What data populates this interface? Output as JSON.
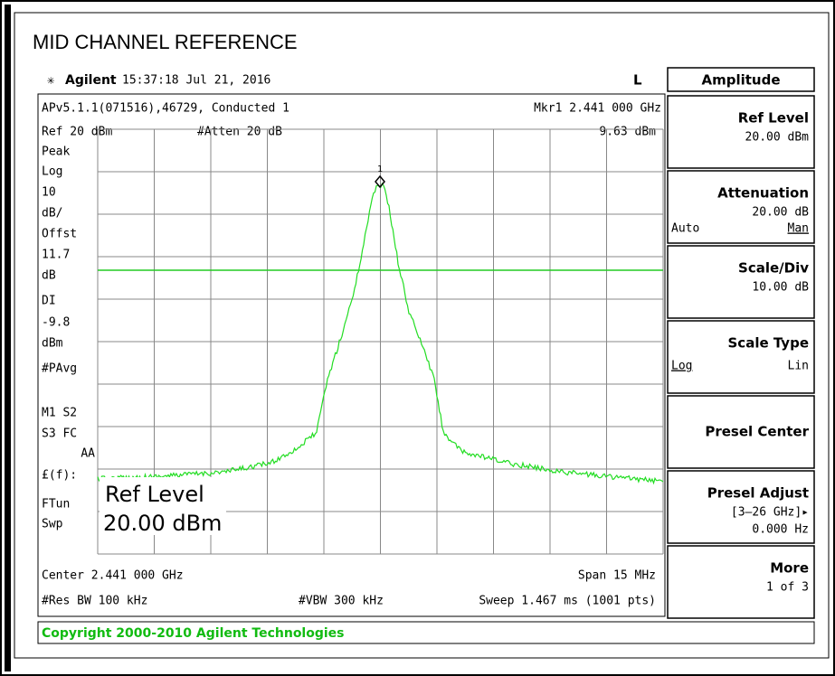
{
  "header": {
    "title": "MID CHANNEL REFERENCE",
    "brand": "Agilent",
    "time": "15:37:18  Jul 21, 2016",
    "mode": "L"
  },
  "screen": {
    "top_left": "APv5.1.1(071516),46729, Conducted 1",
    "marker": "Mkr1  2.441 000 GHz",
    "ref": "Ref 20 dBm",
    "atten": "#Atten 20 dB",
    "marker_value": "9.63 dBm",
    "marker_number": "1",
    "side_labels": [
      "Peak",
      "Log",
      "10",
      "dB/",
      "Offst",
      "11.7",
      "dB",
      "DI",
      "-9.8",
      "dBm",
      "#PAvg",
      "M1  S2",
      "S3  FC",
      "AA",
      "£(f):",
      "FTun",
      "Swp"
    ],
    "active_function": "Ref Level",
    "active_value": "20.00 dBm",
    "center": "Center 2.441 000 GHz",
    "span": "Span 15 MHz",
    "rbw": "#Res BW 100 kHz",
    "vbw": "#VBW 300 kHz",
    "sweep": "Sweep 1.467 ms (1001 pts)"
  },
  "menu": {
    "title": "Amplitude",
    "keys": [
      {
        "label": "Ref Level",
        "lines": [
          "20.00 dBm"
        ]
      },
      {
        "label": "Attenuation",
        "lines": [
          "20.00 dB"
        ],
        "left": "Auto",
        "right": "Man"
      },
      {
        "label": "Scale/Div",
        "lines": [
          "10.00 dB"
        ]
      },
      {
        "label": "Scale Type",
        "left": "Log",
        "right": "Lin"
      },
      {
        "label": "Presel Center"
      },
      {
        "label": "Presel Adjust",
        "lines": [
          "[3–26 GHz]▸",
          "0.000  Hz"
        ]
      },
      {
        "label": "More",
        "lines": [
          "1 of 3"
        ]
      }
    ]
  },
  "status": "Copyright 2000-2010 Agilent Technologies"
}
